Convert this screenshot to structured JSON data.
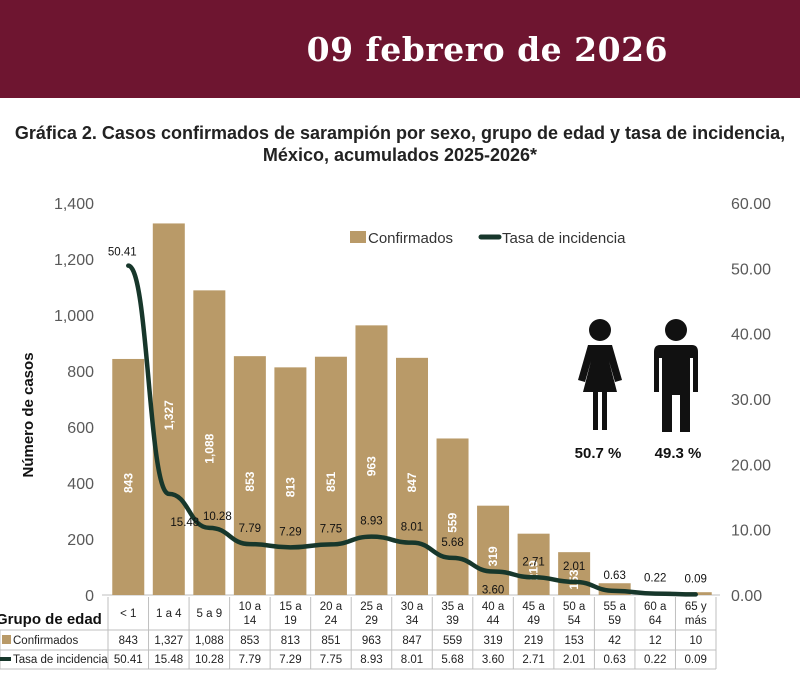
{
  "header": {
    "date": "09 febrero de 2026"
  },
  "title": {
    "line1": "Gráfica 2. Casos confirmados  de sarampión por sexo, grupo de edad y tasa de incidencia,",
    "line2": "México, acumulados 2025-2026*"
  },
  "chart_data": {
    "type": "bar",
    "ylabel": "Número de casos",
    "ylim": [
      0,
      1400
    ],
    "y_ticks": [
      "0",
      "200",
      "400",
      "600",
      "800",
      "1,000",
      "1,200",
      "1,400"
    ],
    "y2lim": [
      0,
      60
    ],
    "y2_ticks": [
      "0.00",
      "10.00",
      "20.00",
      "30.00",
      "40.00",
      "50.00",
      "60.00"
    ],
    "categories": [
      [
        "< 1"
      ],
      [
        "1 a 4"
      ],
      [
        "5 a 9"
      ],
      [
        "10 a",
        "14"
      ],
      [
        "15 a",
        "19"
      ],
      [
        "20 a",
        "24"
      ],
      [
        "25 a",
        "29"
      ],
      [
        "30 a",
        "34"
      ],
      [
        "35 a",
        "39"
      ],
      [
        "40 a",
        "44"
      ],
      [
        "45 a",
        "49"
      ],
      [
        "50 a",
        "54"
      ],
      [
        "55 a",
        "59"
      ],
      [
        "60 a",
        "64"
      ],
      [
        "65 y",
        "más"
      ]
    ],
    "series": [
      {
        "name": "Confirmados",
        "type": "bar",
        "axis": "left",
        "color": "#b99a68",
        "values": [
          843,
          1327,
          1088,
          853,
          813,
          851,
          963,
          847,
          559,
          319,
          219,
          153,
          42,
          12,
          10
        ],
        "labels": [
          "843",
          "1,327",
          "1,088",
          "853",
          "813",
          "851",
          "963",
          "847",
          "559",
          "319",
          "219",
          "153",
          "",
          "",
          ""
        ],
        "table": [
          "843",
          "1,327",
          "1,088",
          "853",
          "813",
          "851",
          "963",
          "847",
          "559",
          "319",
          "219",
          "153",
          "42",
          "12",
          "10"
        ]
      },
      {
        "name": "Tasa de incidencia",
        "type": "line",
        "axis": "right",
        "color": "#17372b",
        "values": [
          50.41,
          15.48,
          10.28,
          7.79,
          7.29,
          7.75,
          8.93,
          8.01,
          5.68,
          3.6,
          2.71,
          2.01,
          0.63,
          0.22,
          0.09
        ],
        "labels": [
          "50.41",
          "15.48",
          "10.28",
          "7.79",
          "7.29",
          "7.75",
          "8.93",
          "8.01",
          "5.68",
          "3.60",
          "2.71",
          "2.01",
          "0.63",
          "0.22",
          "0.09"
        ]
      }
    ],
    "legend": {
      "placement": "top-center"
    },
    "table": {
      "header_label": "Grupo de edad"
    },
    "sex": {
      "female_pct": "50.7 %",
      "male_pct": "49.3 %",
      "female_icon": "woman-icon",
      "male_icon": "man-icon"
    }
  }
}
